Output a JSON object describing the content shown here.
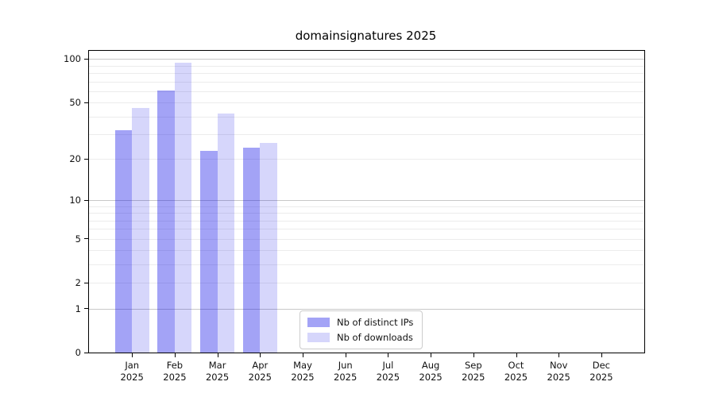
{
  "chart_data": {
    "type": "bar",
    "title": "domainsignatures 2025",
    "scale": "log10(value+1)",
    "grid": true,
    "legend_position": "lower center",
    "categories": [
      "Jan",
      "Feb",
      "Mar",
      "Apr",
      "May",
      "Jun",
      "Jul",
      "Aug",
      "Sep",
      "Oct",
      "Nov",
      "Dec"
    ],
    "year_label": "2025",
    "series": [
      {
        "name": "Nb of distinct IPs",
        "color": "rgba(0,0,230,0.36)",
        "values": [
          32,
          61,
          23,
          24,
          0,
          0,
          0,
          0,
          0,
          0,
          0,
          0
        ]
      },
      {
        "name": "Nb of downloads",
        "color": "rgba(0,0,230,0.16)",
        "values": [
          46,
          95,
          42,
          26,
          0,
          0,
          0,
          0,
          0,
          0,
          0,
          0
        ]
      }
    ],
    "y_ticks": [
      0,
      1,
      2,
      5,
      10,
      20,
      50,
      100
    ],
    "major_gridlines": [
      1,
      10,
      100
    ],
    "minor_gridlines": [
      2,
      3,
      4,
      5,
      6,
      7,
      8,
      9,
      20,
      30,
      40,
      50,
      60,
      70,
      80,
      90
    ],
    "ylim": [
      0,
      114
    ]
  }
}
